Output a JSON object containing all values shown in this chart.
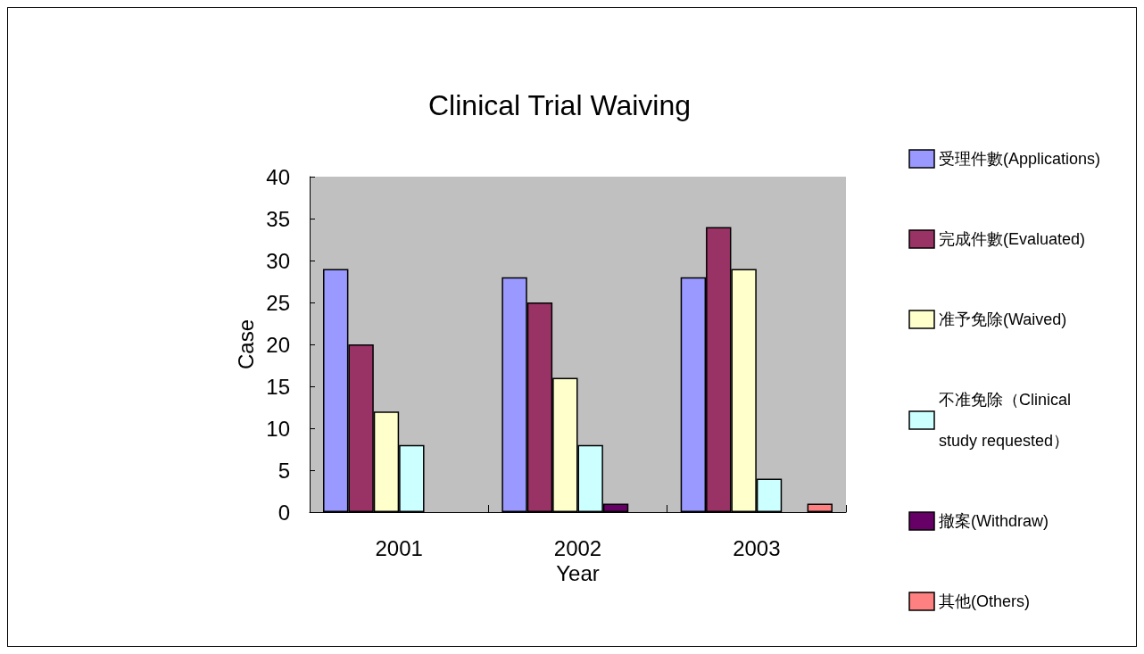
{
  "chart_data": {
    "type": "bar",
    "title": "Clinical Trial Waiving",
    "xlabel": "Year",
    "ylabel": "Case",
    "categories": [
      "2001",
      "2002",
      "2003"
    ],
    "series": [
      {
        "name": "受理件數(Applications)",
        "color": "#9999ff",
        "values": [
          29,
          28,
          28
        ]
      },
      {
        "name": "完成件數(Evaluated)",
        "color": "#993366",
        "values": [
          20,
          25,
          34
        ]
      },
      {
        "name": "准予免除(Waived)",
        "color": "#ffffcc",
        "values": [
          12,
          16,
          29
        ]
      },
      {
        "name": "不准免除（Clinical study requested）",
        "color": "#ccffff",
        "values": [
          8,
          8,
          4
        ]
      },
      {
        "name": "撤案(Withdraw)",
        "color": "#660066",
        "values": [
          null,
          1,
          null
        ]
      },
      {
        "name": "其他(Others)",
        "color": "#ff8080",
        "values": [
          null,
          null,
          1
        ]
      }
    ],
    "ylim": [
      0,
      40
    ],
    "yticks": [
      0,
      5,
      10,
      15,
      20,
      25,
      30,
      35,
      40
    ],
    "grid": false,
    "legend": "right"
  }
}
